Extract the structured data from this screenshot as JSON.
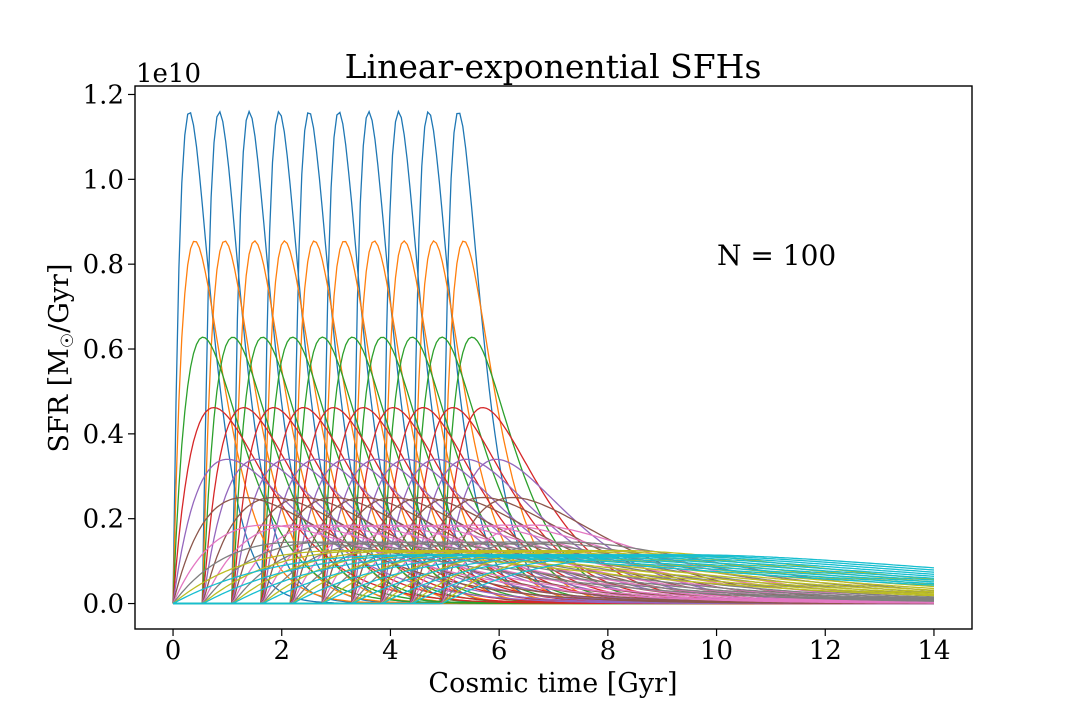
{
  "chart_data": {
    "type": "line",
    "title": "Linear-exponential SFHs",
    "xlabel": "Cosmic time [Gyr]",
    "ylabel": "SFR [M☉/Gyr]",
    "y_multiplier": "1e10",
    "annotation": "N = 100",
    "xlim": [
      -0.7,
      14.7
    ],
    "ylim": [
      -0.06,
      1.22
    ],
    "xticks": [
      0,
      2,
      4,
      6,
      8,
      10,
      12,
      14
    ],
    "xtick_labels": [
      "0",
      "2",
      "4",
      "6",
      "8",
      "10",
      "12",
      "14"
    ],
    "yticks": [
      0.0,
      0.2,
      0.4,
      0.6,
      0.8,
      1.0,
      1.2
    ],
    "ytick_labels": [
      "0.0",
      "0.2",
      "0.4",
      "0.6",
      "0.8",
      "1.0",
      "1.2"
    ],
    "grid": false,
    "x_range": [
      0,
      14
    ],
    "series_family": {
      "model": "linear-exponential: SFR(t) = A * (t - t0) * exp(-(t - t0)/tau) for t > t0, scaled to peak value",
      "peak_sfr_by_tau": [
        1.16,
        0.855,
        0.628,
        0.462,
        0.34,
        0.25,
        0.185,
        0.145,
        0.125,
        0.115
      ],
      "tau_gyr": [
        0.3,
        0.4,
        0.55,
        0.75,
        1.0,
        1.3,
        1.7,
        2.3,
        3.2,
        4.5
      ],
      "t0_gyr": [
        0.0,
        0.55,
        1.1,
        1.65,
        2.2,
        2.75,
        3.3,
        3.85,
        4.4,
        4.95
      ],
      "count": 100
    },
    "colors": [
      "#1f77b4",
      "#ff7f0e",
      "#2ca02c",
      "#d62728",
      "#9467bd",
      "#8c564b",
      "#e377c2",
      "#7f7f7f",
      "#bcbd22",
      "#17becf"
    ]
  }
}
